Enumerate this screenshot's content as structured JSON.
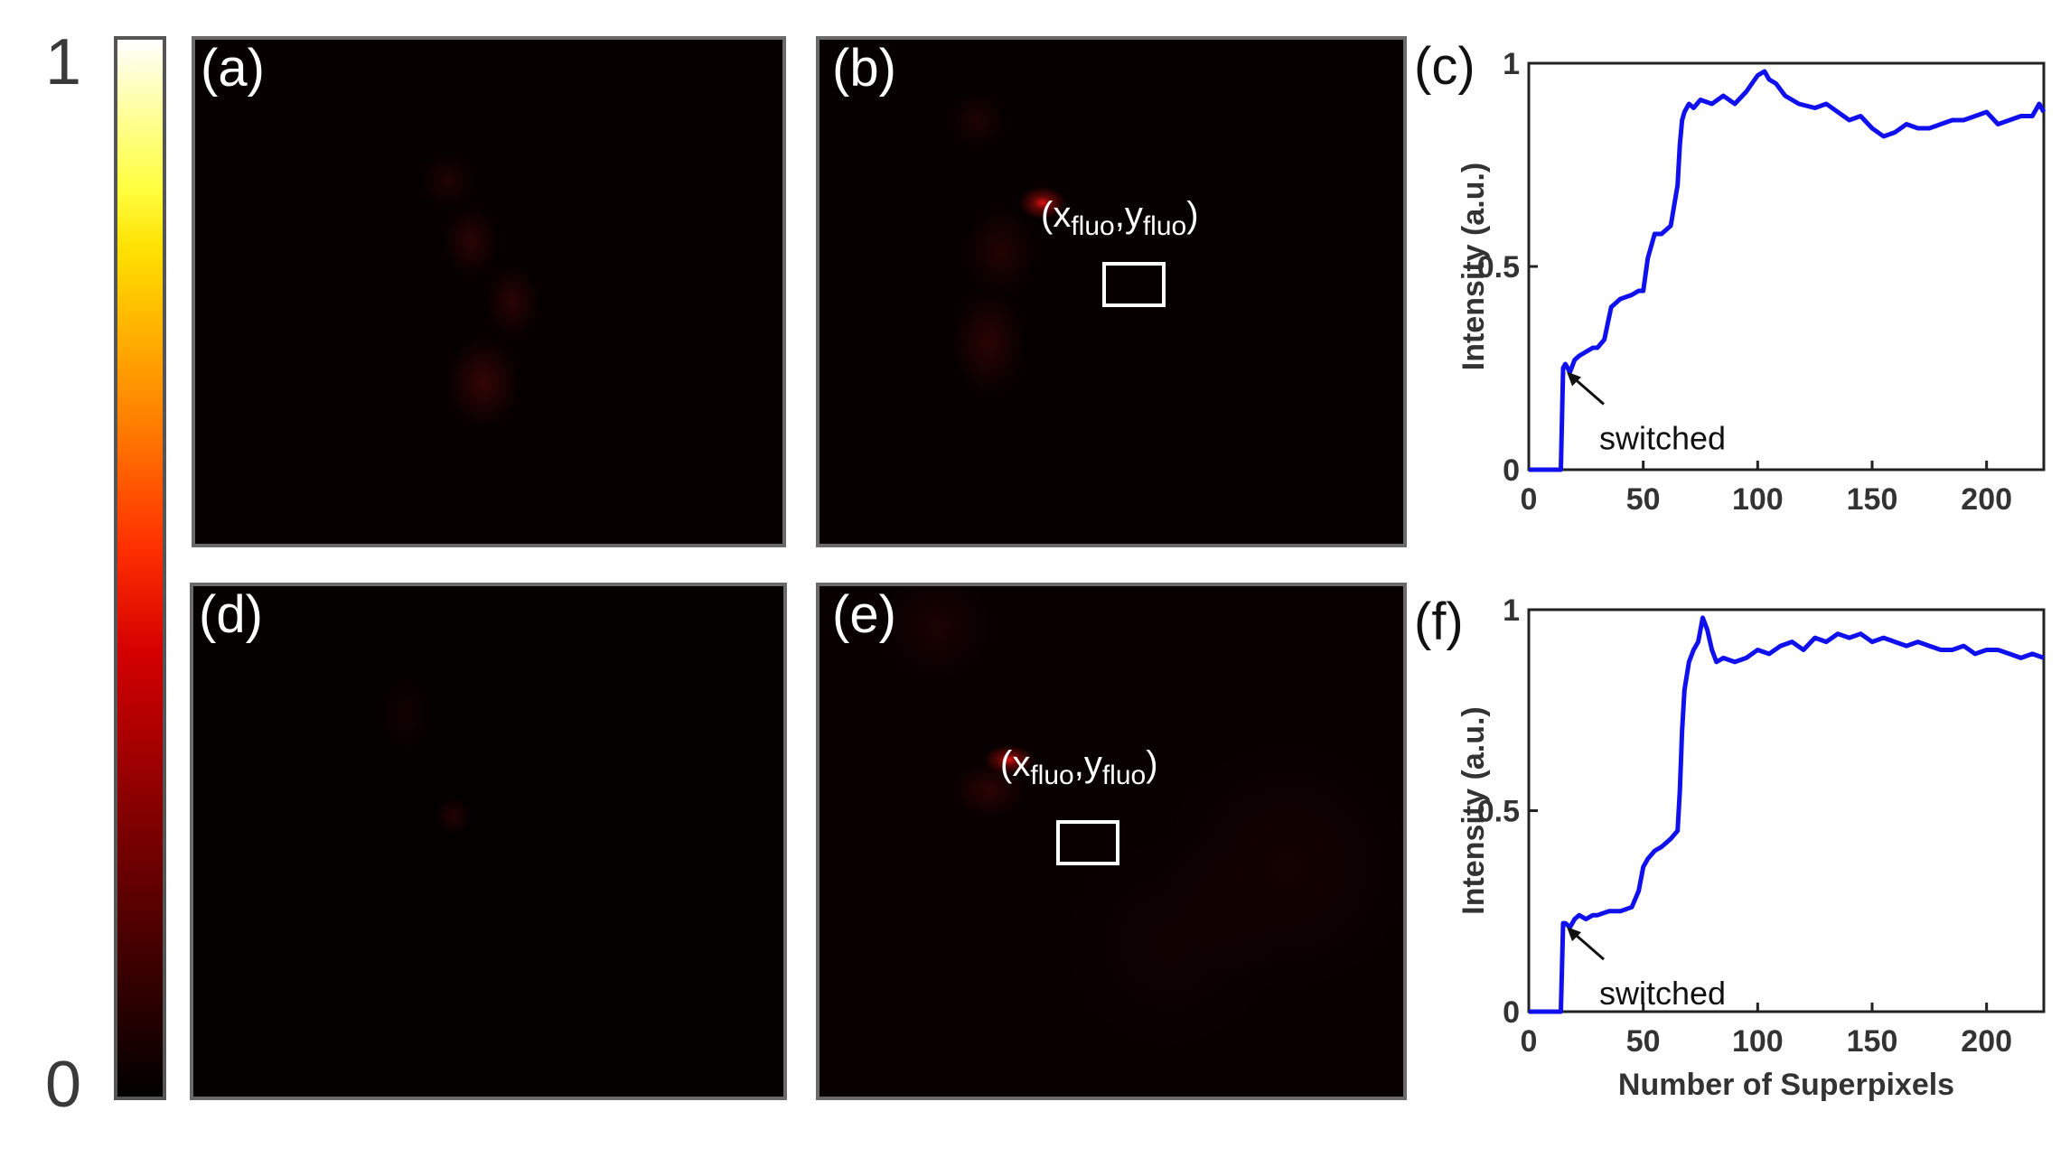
{
  "colorbar": {
    "max_label": "1",
    "min_label": "0"
  },
  "panels": [
    {
      "id": "a",
      "label": "(a)"
    },
    {
      "id": "b",
      "label": "(b)",
      "annotation": {
        "x": "x",
        "x_sub": "fluo",
        "y": "y",
        "y_sub": "fluo"
      }
    },
    {
      "id": "d",
      "label": "(d)"
    },
    {
      "id": "e",
      "label": "(e)",
      "annotation": {
        "x": "x",
        "x_sub": "fluo",
        "y": "y",
        "y_sub": "fluo"
      }
    }
  ],
  "chart_labels": {
    "c": "(c)",
    "f": "(f)"
  },
  "chart_data": [
    {
      "id": "c",
      "type": "line",
      "title": "",
      "xlabel": "",
      "ylabel": "Intensity (a.u.)",
      "xlim": [
        0,
        225
      ],
      "ylim": [
        0,
        1
      ],
      "xticks": [
        0,
        50,
        100,
        150,
        200
      ],
      "yticks": [
        0,
        0.5,
        1
      ],
      "ytick_labels": [
        "0",
        "0.5",
        "1"
      ],
      "color": "#1010ee",
      "annotation": {
        "text": "switched",
        "x": 15,
        "y": 0.25
      },
      "series": [
        {
          "x": [
            0,
            14,
            15,
            16,
            18,
            20,
            22,
            25,
            28,
            30,
            33,
            36,
            40,
            45,
            48,
            50,
            52,
            55,
            58,
            60,
            62,
            65,
            66,
            67,
            68,
            70,
            72,
            75,
            80,
            85,
            90,
            95,
            100,
            103,
            105,
            108,
            112,
            118,
            125,
            130,
            135,
            140,
            145,
            150,
            155,
            160,
            165,
            170,
            175,
            180,
            185,
            190,
            195,
            200,
            205,
            210,
            215,
            220,
            223,
            225
          ],
          "y": [
            0,
            0,
            0.25,
            0.26,
            0.24,
            0.27,
            0.28,
            0.29,
            0.3,
            0.3,
            0.32,
            0.4,
            0.42,
            0.43,
            0.44,
            0.44,
            0.52,
            0.58,
            0.58,
            0.59,
            0.6,
            0.7,
            0.8,
            0.86,
            0.88,
            0.9,
            0.89,
            0.91,
            0.9,
            0.92,
            0.9,
            0.93,
            0.97,
            0.98,
            0.96,
            0.95,
            0.92,
            0.9,
            0.89,
            0.9,
            0.88,
            0.86,
            0.87,
            0.84,
            0.82,
            0.83,
            0.85,
            0.84,
            0.84,
            0.85,
            0.86,
            0.86,
            0.87,
            0.88,
            0.85,
            0.86,
            0.87,
            0.87,
            0.9,
            0.88
          ]
        }
      ]
    },
    {
      "id": "f",
      "type": "line",
      "title": "",
      "xlabel": "Number of Superpixels",
      "ylabel": "Intensity (a.u.)",
      "xlim": [
        0,
        225
      ],
      "ylim": [
        0,
        1
      ],
      "xticks": [
        0,
        50,
        100,
        150,
        200
      ],
      "yticks": [
        0,
        0.5,
        1
      ],
      "ytick_labels": [
        "0",
        "0.5",
        "1"
      ],
      "color": "#1010ee",
      "annotation": {
        "text": "switched",
        "x": 15,
        "y": 0.22
      },
      "series": [
        {
          "x": [
            0,
            14,
            15,
            16,
            18,
            20,
            22,
            25,
            28,
            30,
            35,
            40,
            45,
            48,
            50,
            52,
            55,
            58,
            60,
            62,
            65,
            66,
            67,
            68,
            70,
            72,
            74,
            76,
            78,
            80,
            82,
            85,
            90,
            95,
            100,
            105,
            110,
            115,
            120,
            125,
            130,
            135,
            140,
            145,
            150,
            155,
            160,
            165,
            170,
            175,
            180,
            185,
            190,
            195,
            200,
            205,
            210,
            215,
            220,
            225
          ],
          "y": [
            0,
            0,
            0.22,
            0.22,
            0.21,
            0.23,
            0.24,
            0.23,
            0.24,
            0.24,
            0.25,
            0.25,
            0.26,
            0.3,
            0.36,
            0.38,
            0.4,
            0.41,
            0.42,
            0.43,
            0.45,
            0.55,
            0.7,
            0.8,
            0.87,
            0.9,
            0.92,
            0.98,
            0.95,
            0.9,
            0.87,
            0.88,
            0.87,
            0.88,
            0.9,
            0.89,
            0.91,
            0.92,
            0.9,
            0.93,
            0.92,
            0.94,
            0.93,
            0.94,
            0.92,
            0.93,
            0.92,
            0.91,
            0.92,
            0.91,
            0.9,
            0.9,
            0.91,
            0.89,
            0.9,
            0.9,
            0.89,
            0.88,
            0.89,
            0.88
          ]
        }
      ]
    }
  ]
}
